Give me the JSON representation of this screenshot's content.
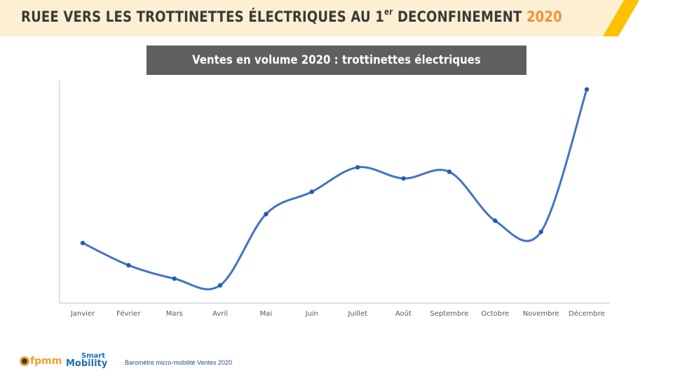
{
  "header": {
    "title_main": "RUEE VERS LES TROTTINETTES  ÉLECTRIQUES AU 1",
    "title_sup": "er",
    "title_rest": " DECONFINEMENT ",
    "title_year": "2020"
  },
  "colors": {
    "header_bg": "#fdefd2",
    "header_stripe": "#ffc000",
    "accent_year": "#f0923a",
    "subtitle_bg": "#5f5f5f",
    "line": "#4472c4",
    "marker": "#1f5fb0",
    "axis": "#bfbfbf"
  },
  "footer": {
    "logo_fpmm": "fpmm",
    "logo_smart_line1": "Smart",
    "logo_smart_line2": "Mobility",
    "caption": "Baromètre micro-mobilité  Ventes 2020"
  },
  "chart_data": {
    "type": "line",
    "title": "Ventes en volume 2020 : trottinettes  électriques",
    "xlabel": "",
    "ylabel": "",
    "y_unit": "relative index (no y-axis scale shown)",
    "ylim": [
      0,
      100
    ],
    "grid": false,
    "legend": "none",
    "smoothed": true,
    "categories": [
      "Janvier",
      "Février",
      "Mars",
      "Avril",
      "Mai",
      "Juin",
      "Juillet",
      "Août",
      "Septembre",
      "Octobre",
      "Novembre",
      "Décembre"
    ],
    "series": [
      {
        "name": "Ventes en volume 2020",
        "values": [
          27,
          17,
          11,
          8,
          40,
          50,
          61,
          56,
          59,
          37,
          32,
          96
        ]
      }
    ]
  }
}
